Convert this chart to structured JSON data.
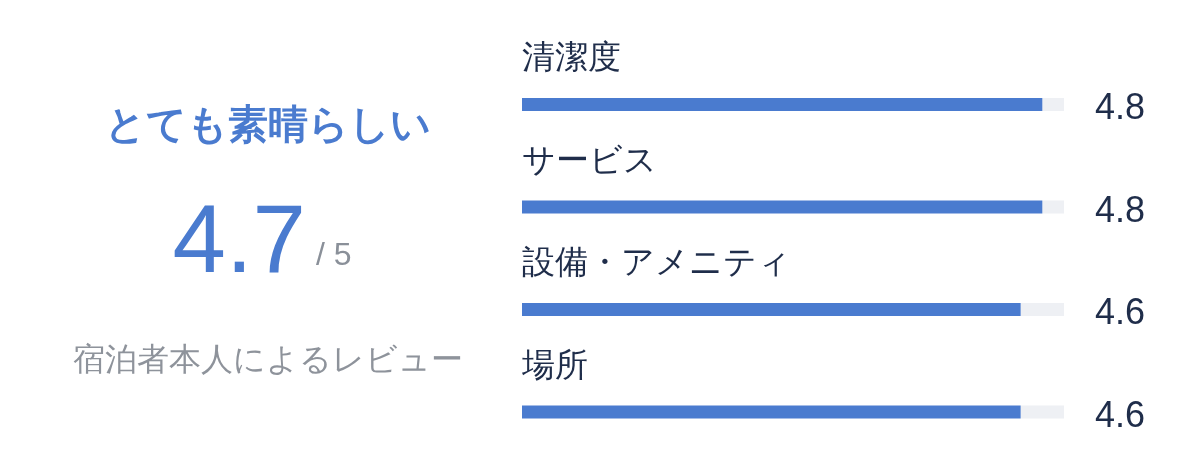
{
  "chart_data": [
    {
      "type": "other",
      "title": "とても素晴らしい",
      "annotations": [
        "4.7",
        "/ 5",
        "宿泊者本人によるレビュー"
      ]
    },
    {
      "type": "bar",
      "orientation": "horizontal",
      "categories": [
        "清潔度",
        "サービス",
        "設備・アメニティ",
        "場所"
      ],
      "values": [
        4.8,
        4.8,
        4.6,
        4.6
      ],
      "color": "#4a7bcf",
      "xlim": [
        0,
        5
      ],
      "data_labels": true,
      "tick_labels": "y"
    }
  ]
}
